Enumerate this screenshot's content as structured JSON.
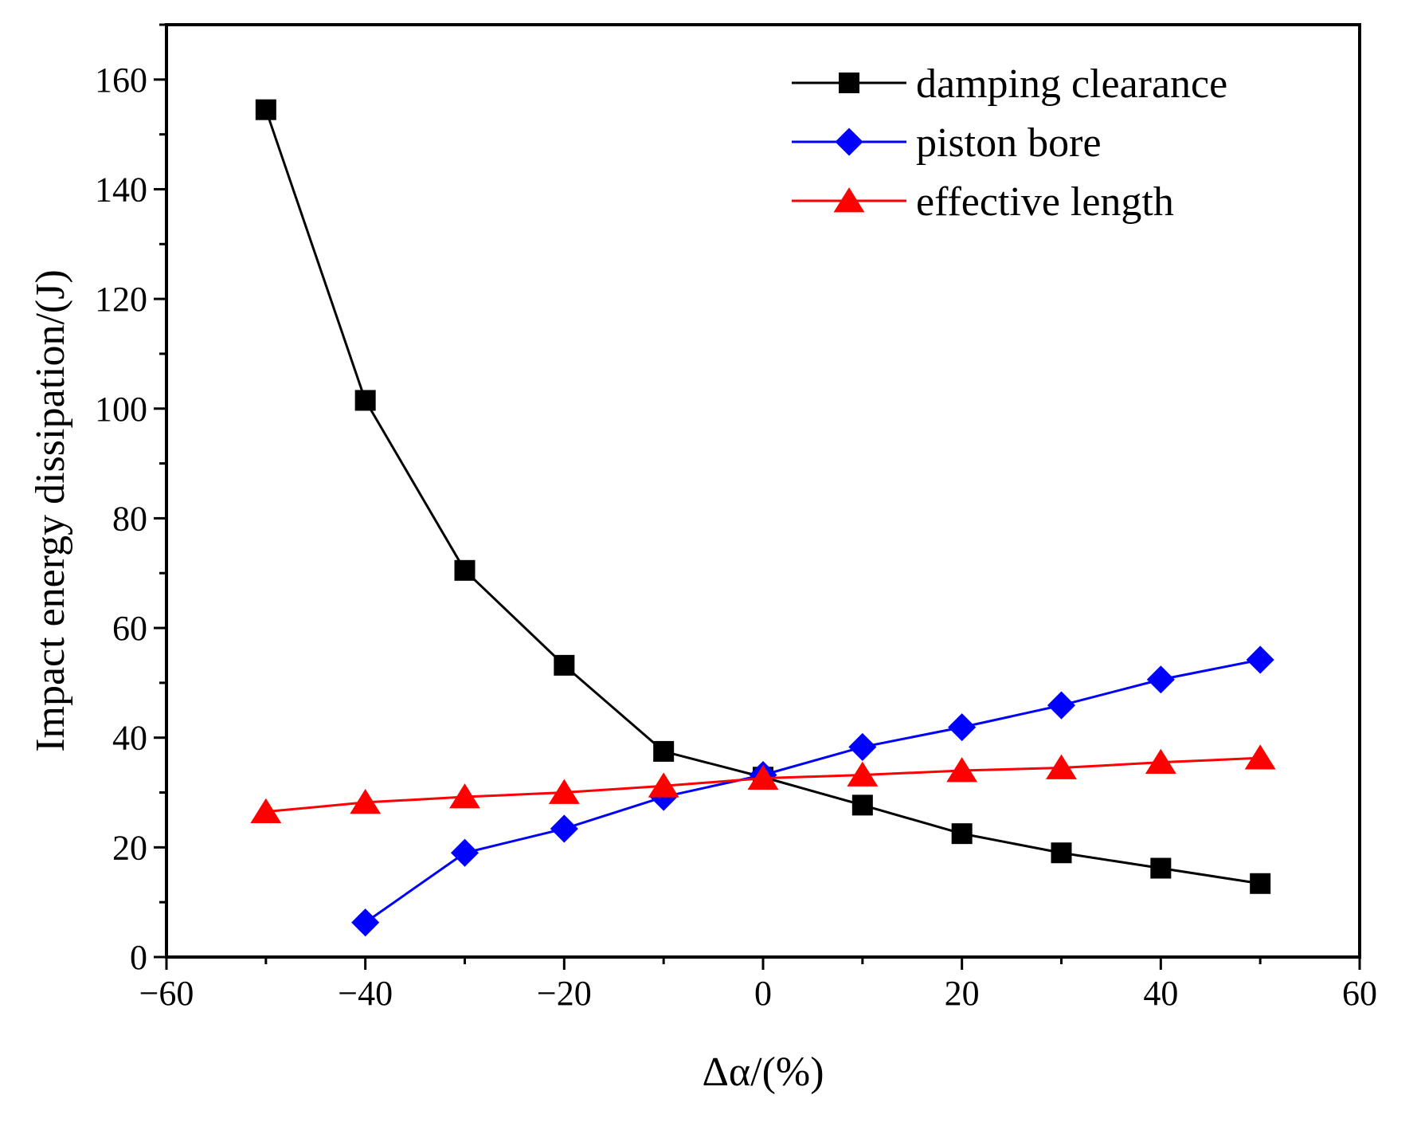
{
  "chart_data": {
    "type": "line",
    "title": "",
    "xlabel": "Δα/(%)",
    "ylabel": "Impact energy dissipation/(J)",
    "xlim": [
      -60,
      60
    ],
    "ylim": [
      0,
      170
    ],
    "xticks": [
      -60,
      -40,
      -20,
      0,
      20,
      40,
      60
    ],
    "yticks": [
      0,
      20,
      40,
      60,
      80,
      100,
      120,
      140,
      160
    ],
    "xtick_labels": [
      "−60",
      "−40",
      "−20",
      "0",
      "20",
      "40",
      "60"
    ],
    "ytick_labels": [
      "0",
      "20",
      "40",
      "60",
      "80",
      "100",
      "120",
      "140",
      "160"
    ],
    "grid": false,
    "legend_position": "top-right",
    "series": [
      {
        "name": "damping clearance",
        "color": "#000000",
        "marker": "square",
        "x": [
          -50,
          -40,
          -30,
          -20,
          -10,
          0,
          10,
          20,
          30,
          40,
          50
        ],
        "values": [
          154.5,
          101.5,
          70.5,
          53.2,
          37.5,
          32.8,
          27.7,
          22.5,
          19.0,
          16.2,
          13.4
        ]
      },
      {
        "name": "piston bore",
        "color": "#0000ff",
        "marker": "diamond",
        "x": [
          -40,
          -30,
          -20,
          -10,
          0,
          10,
          20,
          30,
          40,
          50
        ],
        "values": [
          6.3,
          19.0,
          23.4,
          29.2,
          33.2,
          38.3,
          41.9,
          45.9,
          50.6,
          54.2
        ]
      },
      {
        "name": "effective length",
        "color": "#ff0000",
        "marker": "triangle",
        "x": [
          -50,
          -40,
          -30,
          -20,
          -10,
          0,
          10,
          20,
          30,
          40,
          50
        ],
        "values": [
          26.5,
          28.2,
          29.2,
          30.0,
          31.2,
          32.6,
          33.2,
          34.0,
          34.5,
          35.5,
          36.3
        ]
      }
    ]
  }
}
